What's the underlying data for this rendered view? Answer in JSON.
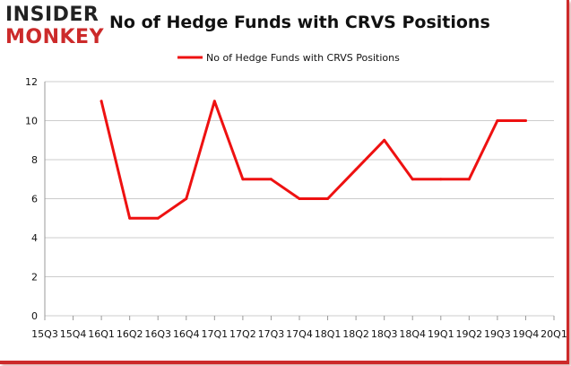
{
  "brand": {
    "logo_line1": "INSIDER",
    "logo_line2": "MONKEY"
  },
  "colors": {
    "series": "#ee1111",
    "brand_red": "#cc2a2a",
    "grid": "#cccccc"
  },
  "chart_data": {
    "type": "line",
    "title": "No of Hedge Funds with CRVS Positions",
    "xlabel": "",
    "ylabel": "",
    "legend": "top-center",
    "grid": true,
    "ylim": [
      0,
      12
    ],
    "yticks": [
      0,
      2,
      4,
      6,
      8,
      10,
      12
    ],
    "categories": [
      "15Q3",
      "15Q4",
      "16Q1",
      "16Q2",
      "16Q3",
      "16Q4",
      "17Q1",
      "17Q2",
      "17Q3",
      "17Q4",
      "18Q1",
      "18Q2",
      "18Q3",
      "18Q4",
      "19Q1",
      "19Q2",
      "19Q3",
      "19Q4",
      "20Q1"
    ],
    "series": [
      {
        "name": "No of Hedge Funds with CRVS Positions",
        "values": [
          null,
          null,
          11,
          5,
          5,
          6,
          11,
          7,
          7,
          6,
          6,
          7.5,
          9,
          7,
          7,
          7,
          10,
          10,
          null
        ]
      }
    ]
  }
}
